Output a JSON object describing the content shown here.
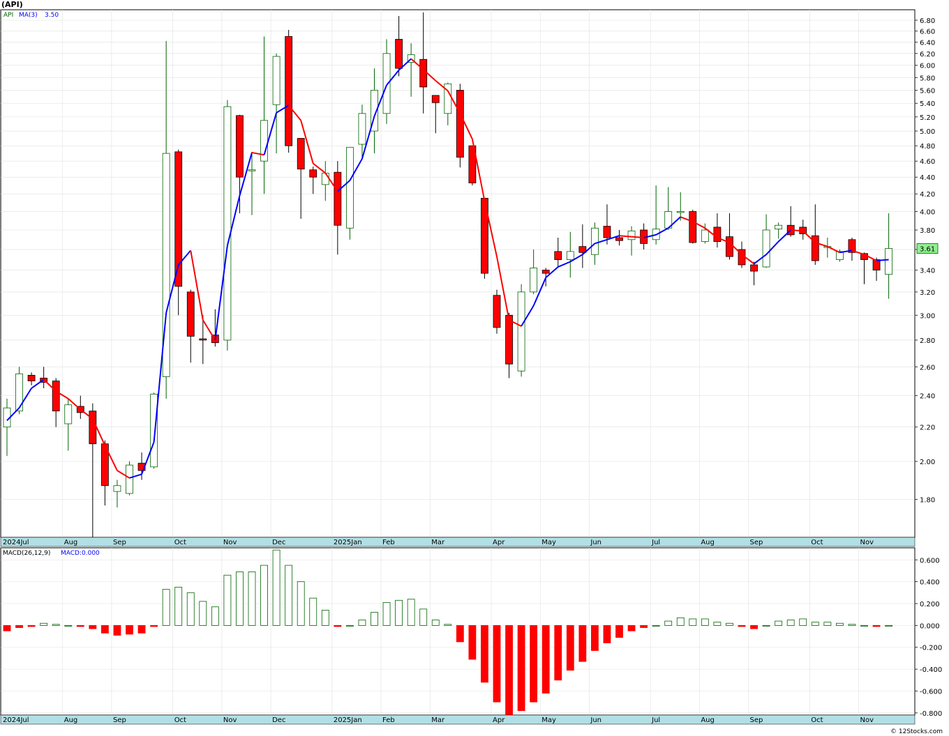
{
  "header": {
    "ticker": "(API)",
    "legend_symbol": "API",
    "legend_ma_label": "MA(3)",
    "legend_ma_value": "3.50",
    "last_price": "3.61",
    "macd_label": "MACD(26,12,9)",
    "macd_value_label": "MACD:0.000",
    "footer": "© 12Stocks.com"
  },
  "colors": {
    "up_candle": "#ffffff",
    "up_candle_border": "#006400",
    "down_candle": "#ff0000",
    "ma_rising": "#0000ff",
    "ma_falling": "#ff0000",
    "macd_positive": "#006400",
    "macd_negative": "#ff0000",
    "axis_bar": "#b0e0e6",
    "last_price_badge": "#90ee90"
  },
  "chart_data": [
    {
      "type": "candlestick",
      "title": "(API)",
      "y_scale": "log",
      "ylim": [
        1.62,
        7.0
      ],
      "y_ticks": [
        "1.80",
        "2.00",
        "2.20",
        "2.40",
        "2.60",
        "2.80",
        "3.00",
        "3.20",
        "3.40",
        "3.60",
        "3.80",
        "4.00",
        "4.20",
        "4.40",
        "4.60",
        "4.80",
        "5.00",
        "5.20",
        "5.40",
        "5.60",
        "5.80",
        "6.00",
        "6.20",
        "6.40",
        "6.60",
        "6.80"
      ],
      "x_labels": [
        {
          "label": "2024Jul",
          "week": 0
        },
        {
          "label": "Aug",
          "week": 5
        },
        {
          "label": "Sep",
          "week": 9
        },
        {
          "label": "Oct",
          "week": 14
        },
        {
          "label": "Nov",
          "week": 18
        },
        {
          "label": "Dec",
          "week": 22
        },
        {
          "label": "2025Jan",
          "week": 27
        },
        {
          "label": "Feb",
          "week": 31
        },
        {
          "label": "Mar",
          "week": 35
        },
        {
          "label": "Apr",
          "week": 40
        },
        {
          "label": "May",
          "week": 44
        },
        {
          "label": "Jun",
          "week": 48
        },
        {
          "label": "Jul",
          "week": 53
        },
        {
          "label": "Aug",
          "week": 57
        },
        {
          "label": "Sep",
          "week": 61
        },
        {
          "label": "Oct",
          "week": 66
        },
        {
          "label": "Nov",
          "week": 70
        }
      ],
      "candles": [
        {
          "o": 2.2,
          "h": 2.38,
          "l": 2.03,
          "c": 2.32
        },
        {
          "o": 2.3,
          "h": 2.6,
          "l": 2.28,
          "c": 2.55
        },
        {
          "o": 2.54,
          "h": 2.56,
          "l": 2.47,
          "c": 2.5
        },
        {
          "o": 2.52,
          "h": 2.6,
          "l": 2.45,
          "c": 2.49
        },
        {
          "o": 2.5,
          "h": 2.52,
          "l": 2.2,
          "c": 2.3
        },
        {
          "o": 2.22,
          "h": 2.38,
          "l": 2.06,
          "c": 2.34
        },
        {
          "o": 2.33,
          "h": 2.4,
          "l": 2.25,
          "c": 2.29
        },
        {
          "o": 2.3,
          "h": 2.35,
          "l": 1.62,
          "c": 2.1
        },
        {
          "o": 2.1,
          "h": 2.12,
          "l": 1.77,
          "c": 1.87
        },
        {
          "o": 1.84,
          "h": 1.9,
          "l": 1.76,
          "c": 1.87
        },
        {
          "o": 1.83,
          "h": 2.0,
          "l": 1.82,
          "c": 1.98
        },
        {
          "o": 1.99,
          "h": 2.05,
          "l": 1.9,
          "c": 1.95
        },
        {
          "o": 1.97,
          "h": 2.42,
          "l": 1.96,
          "c": 2.41
        },
        {
          "o": 2.53,
          "h": 6.42,
          "l": 2.38,
          "c": 4.7
        },
        {
          "o": 4.72,
          "h": 4.75,
          "l": 3.0,
          "c": 3.25
        },
        {
          "o": 3.2,
          "h": 3.22,
          "l": 2.63,
          "c": 2.83
        },
        {
          "o": 2.81,
          "h": 3.0,
          "l": 2.62,
          "c": 2.8
        },
        {
          "o": 2.84,
          "h": 3.05,
          "l": 2.75,
          "c": 2.78
        },
        {
          "o": 2.8,
          "h": 5.45,
          "l": 2.72,
          "c": 5.35
        },
        {
          "o": 5.22,
          "h": 5.23,
          "l": 3.98,
          "c": 4.4
        },
        {
          "o": 4.49,
          "h": 4.72,
          "l": 3.96,
          "c": 4.49
        },
        {
          "o": 4.6,
          "h": 6.5,
          "l": 4.2,
          "c": 5.15
        },
        {
          "o": 5.38,
          "h": 6.2,
          "l": 4.7,
          "c": 6.15
        },
        {
          "o": 6.5,
          "h": 6.62,
          "l": 4.71,
          "c": 4.8
        },
        {
          "o": 4.9,
          "h": 4.9,
          "l": 3.92,
          "c": 4.5
        },
        {
          "o": 4.49,
          "h": 4.53,
          "l": 4.2,
          "c": 4.4
        },
        {
          "o": 4.31,
          "h": 4.6,
          "l": 4.12,
          "c": 4.45
        },
        {
          "o": 4.46,
          "h": 4.6,
          "l": 3.55,
          "c": 3.85
        },
        {
          "o": 3.82,
          "h": 4.78,
          "l": 3.7,
          "c": 4.78
        },
        {
          "o": 4.82,
          "h": 5.38,
          "l": 4.62,
          "c": 5.25
        },
        {
          "o": 5.0,
          "h": 5.95,
          "l": 4.7,
          "c": 5.6
        },
        {
          "o": 5.25,
          "h": 6.45,
          "l": 5.1,
          "c": 6.2
        },
        {
          "o": 6.45,
          "h": 6.88,
          "l": 5.82,
          "c": 5.95
        },
        {
          "o": 6.05,
          "h": 6.38,
          "l": 5.5,
          "c": 6.18
        },
        {
          "o": 6.1,
          "h": 6.95,
          "l": 5.25,
          "c": 5.65
        },
        {
          "o": 5.52,
          "h": 5.52,
          "l": 4.97,
          "c": 5.41
        },
        {
          "o": 5.25,
          "h": 5.72,
          "l": 5.08,
          "c": 5.7
        },
        {
          "o": 5.6,
          "h": 5.7,
          "l": 4.52,
          "c": 4.65
        },
        {
          "o": 4.8,
          "h": 4.8,
          "l": 4.3,
          "c": 4.33
        },
        {
          "o": 4.15,
          "h": 4.15,
          "l": 3.32,
          "c": 3.37
        },
        {
          "o": 3.17,
          "h": 3.22,
          "l": 2.85,
          "c": 2.9
        },
        {
          "o": 3.0,
          "h": 3.02,
          "l": 2.52,
          "c": 2.62
        },
        {
          "o": 2.57,
          "h": 3.27,
          "l": 2.53,
          "c": 3.2
        },
        {
          "o": 3.2,
          "h": 3.6,
          "l": 3.18,
          "c": 3.42
        },
        {
          "o": 3.4,
          "h": 3.42,
          "l": 3.25,
          "c": 3.37
        },
        {
          "o": 3.58,
          "h": 3.72,
          "l": 3.43,
          "c": 3.5
        },
        {
          "o": 3.5,
          "h": 3.78,
          "l": 3.33,
          "c": 3.58
        },
        {
          "o": 3.63,
          "h": 3.86,
          "l": 3.42,
          "c": 3.57
        },
        {
          "o": 3.55,
          "h": 3.88,
          "l": 3.45,
          "c": 3.82
        },
        {
          "o": 3.84,
          "h": 4.08,
          "l": 3.65,
          "c": 3.72
        },
        {
          "o": 3.72,
          "h": 3.8,
          "l": 3.64,
          "c": 3.69
        },
        {
          "o": 3.7,
          "h": 3.84,
          "l": 3.54,
          "c": 3.79
        },
        {
          "o": 3.8,
          "h": 3.87,
          "l": 3.6,
          "c": 3.66
        },
        {
          "o": 3.7,
          "h": 4.3,
          "l": 3.65,
          "c": 3.81
        },
        {
          "o": 3.82,
          "h": 4.28,
          "l": 3.8,
          "c": 4.0
        },
        {
          "o": 4.0,
          "h": 4.22,
          "l": 3.9,
          "c": 4.0
        },
        {
          "o": 4.0,
          "h": 4.02,
          "l": 3.66,
          "c": 3.67
        },
        {
          "o": 3.68,
          "h": 3.87,
          "l": 3.66,
          "c": 3.8
        },
        {
          "o": 3.83,
          "h": 3.98,
          "l": 3.62,
          "c": 3.68
        },
        {
          "o": 3.73,
          "h": 3.98,
          "l": 3.5,
          "c": 3.53
        },
        {
          "o": 3.6,
          "h": 3.68,
          "l": 3.42,
          "c": 3.45
        },
        {
          "o": 3.45,
          "h": 3.48,
          "l": 3.26,
          "c": 3.39
        },
        {
          "o": 3.43,
          "h": 3.97,
          "l": 3.42,
          "c": 3.8
        },
        {
          "o": 3.81,
          "h": 3.88,
          "l": 3.71,
          "c": 3.85
        },
        {
          "o": 3.85,
          "h": 4.06,
          "l": 3.73,
          "c": 3.75
        },
        {
          "o": 3.83,
          "h": 3.91,
          "l": 3.7,
          "c": 3.76
        },
        {
          "o": 3.74,
          "h": 4.08,
          "l": 3.45,
          "c": 3.49
        },
        {
          "o": 3.62,
          "h": 3.72,
          "l": 3.52,
          "c": 3.63
        },
        {
          "o": 3.5,
          "h": 3.6,
          "l": 3.48,
          "c": 3.58
        },
        {
          "o": 3.7,
          "h": 3.72,
          "l": 3.49,
          "c": 3.57
        },
        {
          "o": 3.56,
          "h": 3.57,
          "l": 3.27,
          "c": 3.5
        },
        {
          "o": 3.5,
          "h": 3.52,
          "l": 3.3,
          "c": 3.4
        },
        {
          "o": 3.36,
          "h": 3.98,
          "l": 3.14,
          "c": 3.61
        }
      ],
      "ma3": [
        2.24,
        2.32,
        2.45,
        2.51,
        2.43,
        2.38,
        2.31,
        2.25,
        2.09,
        1.95,
        1.91,
        1.93,
        2.11,
        3.02,
        3.45,
        3.59,
        2.96,
        2.8,
        3.64,
        4.18,
        4.71,
        4.68,
        5.26,
        5.37,
        5.15,
        4.57,
        4.45,
        4.23,
        4.36,
        4.63,
        5.21,
        5.68,
        5.92,
        6.11,
        5.93,
        5.75,
        5.59,
        5.25,
        4.89,
        4.12,
        3.53,
        2.96,
        2.91,
        3.08,
        3.33,
        3.43,
        3.48,
        3.55,
        3.66,
        3.7,
        3.74,
        3.73,
        3.72,
        3.75,
        3.82,
        3.94,
        3.89,
        3.82,
        3.72,
        3.67,
        3.55,
        3.46,
        3.55,
        3.68,
        3.8,
        3.79,
        3.67,
        3.63,
        3.57,
        3.59,
        3.55,
        3.49,
        3.5
      ]
    },
    {
      "type": "bar",
      "title": "MACD(26,12,9)",
      "ylim": [
        -0.82,
        0.71
      ],
      "y_ticks": [
        "0.600",
        "0.400",
        "0.200",
        "0.000",
        "-0.200",
        "-0.400",
        "-0.600",
        "-0.800"
      ],
      "values": [
        -0.05,
        -0.02,
        -0.01,
        0.02,
        0.01,
        0.0,
        -0.01,
        -0.03,
        -0.07,
        -0.09,
        -0.08,
        -0.07,
        -0.01,
        0.33,
        0.35,
        0.3,
        0.22,
        0.17,
        0.46,
        0.49,
        0.49,
        0.55,
        0.69,
        0.55,
        0.4,
        0.25,
        0.14,
        -0.01,
        0.0,
        0.05,
        0.12,
        0.21,
        0.23,
        0.24,
        0.15,
        0.05,
        0.01,
        -0.15,
        -0.31,
        -0.52,
        -0.7,
        -0.83,
        -0.78,
        -0.7,
        -0.62,
        -0.5,
        -0.41,
        -0.33,
        -0.23,
        -0.16,
        -0.11,
        -0.05,
        -0.02,
        0.0,
        0.04,
        0.07,
        0.06,
        0.06,
        0.03,
        0.02,
        -0.01,
        -0.03,
        0.0,
        0.04,
        0.05,
        0.06,
        0.03,
        0.03,
        0.02,
        0.01,
        0.0,
        -0.01,
        0.0
      ]
    }
  ]
}
